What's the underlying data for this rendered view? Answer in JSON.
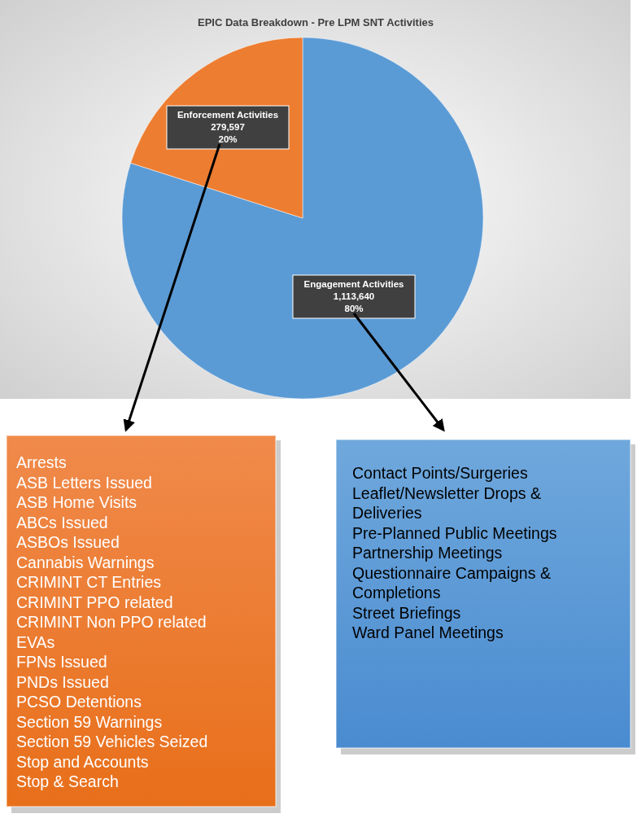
{
  "chart_data": {
    "type": "pie",
    "title": "EPIC Data Breakdown - Pre LPM SNT Activities",
    "categories": [
      "Engagement Activities",
      "Enforcement Activities"
    ],
    "values": [
      1113640,
      279597
    ],
    "colors": [
      "#5b9bd5",
      "#ed7d31"
    ],
    "value_labels": [
      "1,113,640\n80%",
      "279,597\n20%"
    ],
    "legend": false,
    "annotations": [
      "Arrests\nASB Letters Issued\nASB Home Visits\nABCs Issued\nASBOs Issued\nCannabis Warnings\nCRIMINT CT Entries\nCRIMINT PPO related\nCRIMINT Non PPO related\nEVAs\nFPNs Issued\nPNDs Issued\nPCSO Detentions\nSection 59 Warnings\nSection 59 Vehicles Seized\nStop and Accounts\nStop & Search",
      "Contact Points/Surgeries\nLeaflet/Newsletter Drops & Deliveries\nPre-Planned Public Meetings\nPartnership Meetings\nQuestionnaire Campaigns & Completions\nStreet Briefings\nWard Panel Meetings"
    ]
  }
}
